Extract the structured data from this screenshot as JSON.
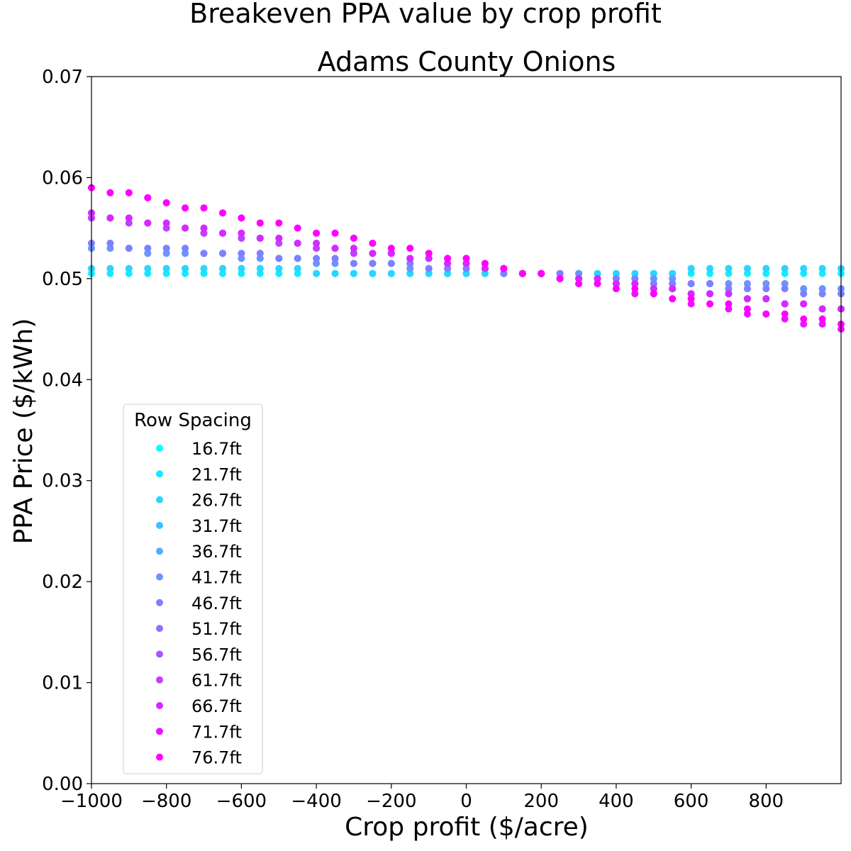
{
  "chart_data": {
    "type": "scatter",
    "suptitle": "Breakeven PPA value by crop profit",
    "title": "Adams County Onions",
    "xlabel": "Crop profit ($/acre)",
    "ylabel": "PPA Price ($/kWh)",
    "xlim": [
      -1000,
      1000
    ],
    "ylim": [
      0.0,
      0.07
    ],
    "xticks": [
      -1000,
      -800,
      -600,
      -400,
      -200,
      0,
      200,
      400,
      600,
      800
    ],
    "xtick_labels": [
      "−1000",
      "−800",
      "−600",
      "−400",
      "−200",
      "0",
      "200",
      "400",
      "600",
      "800"
    ],
    "yticks": [
      0.0,
      0.01,
      0.02,
      0.03,
      0.04,
      0.05,
      0.06,
      0.07
    ],
    "ytick_labels": [
      "0.00",
      "0.01",
      "0.02",
      "0.03",
      "0.04",
      "0.05",
      "0.06",
      "0.07"
    ],
    "grid": false,
    "legend": {
      "title": "Row Spacing",
      "placement": "lower-left"
    },
    "x": [
      -1000,
      -950,
      -900,
      -850,
      -800,
      -750,
      -700,
      -650,
      -600,
      -550,
      -500,
      -450,
      -400,
      -350,
      -300,
      -250,
      -200,
      -150,
      -100,
      -50,
      0,
      50,
      100,
      150,
      200,
      250,
      300,
      350,
      400,
      450,
      500,
      550,
      600,
      650,
      700,
      750,
      800,
      850,
      900,
      950,
      1000
    ],
    "series": [
      {
        "name": "16.7ft",
        "color": "#00ffff",
        "y_start": 0.051,
        "y_end": 0.051
      },
      {
        "name": "21.7ft",
        "color": "#15eaff",
        "y_start": 0.0505,
        "y_end": 0.0505
      },
      {
        "name": "26.7ft",
        "color": "#2ad5ff",
        "y_start": 0.051,
        "y_end": 0.051
      },
      {
        "name": "31.7ft",
        "color": "#40bfff",
        "y_start": 0.053,
        "y_end": 0.0485
      },
      {
        "name": "36.7ft",
        "color": "#55aaff",
        "y_start": 0.0535,
        "y_end": 0.049
      },
      {
        "name": "41.7ft",
        "color": "#6a95ff",
        "y_start": 0.053,
        "y_end": 0.049
      },
      {
        "name": "46.7ft",
        "color": "#7f80ff",
        "y_start": 0.0535,
        "y_end": 0.0485
      },
      {
        "name": "51.7ft",
        "color": "#956aff",
        "y_start": 0.056,
        "y_end": 0.047
      },
      {
        "name": "56.7ft",
        "color": "#aa55ff",
        "y_start": 0.0565,
        "y_end": 0.047
      },
      {
        "name": "61.7ft",
        "color": "#bf40ff",
        "y_start": 0.056,
        "y_end": 0.047
      },
      {
        "name": "66.7ft",
        "color": "#d52aff",
        "y_start": 0.0565,
        "y_end": 0.047
      },
      {
        "name": "71.7ft",
        "color": "#ea15ff",
        "y_start": 0.059,
        "y_end": 0.045
      },
      {
        "name": "76.7ft",
        "color": "#ff00ff",
        "y_start": 0.059,
        "y_end": 0.0455
      }
    ]
  }
}
